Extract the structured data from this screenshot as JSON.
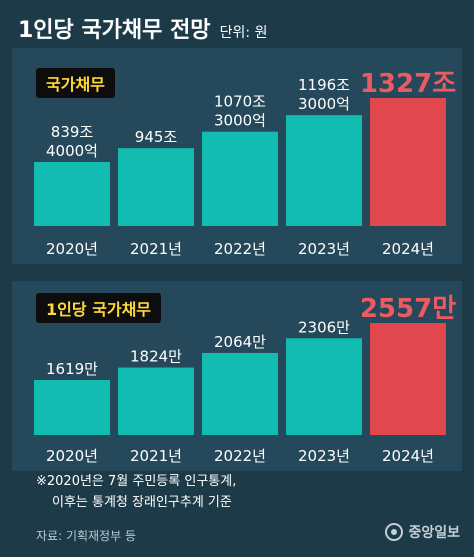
{
  "header": {
    "title": "1인당 국가채무 전망",
    "unit": "단위: 원"
  },
  "chart_data": [
    {
      "type": "bar",
      "badge": "국가채무",
      "categories": [
        "2020년",
        "2021년",
        "2022년",
        "2023년",
        "2024년"
      ],
      "values": [
        839.4,
        945,
        1070.3,
        1196.3,
        1327
      ],
      "value_unit": "조 원",
      "data_labels": [
        [
          "839조",
          "4000억"
        ],
        [
          "945조"
        ],
        [
          "1070조",
          "3000억"
        ],
        [
          "1196조",
          "3000억"
        ],
        [
          "1327조"
        ]
      ],
      "highlight_index": 4,
      "colors": {
        "bar": "#12bcb0",
        "highlight": "#e0474e",
        "highlight_label": "#ee5a62"
      }
    },
    {
      "type": "bar",
      "badge": "1인당 국가채무",
      "categories": [
        "2020년",
        "2021년",
        "2022년",
        "2023년",
        "2024년"
      ],
      "values": [
        1619,
        1824,
        2064,
        2306,
        2557
      ],
      "value_unit": "만 원",
      "data_labels": [
        [
          "1619만"
        ],
        [
          "1824만"
        ],
        [
          "2064만"
        ],
        [
          "2306만"
        ],
        [
          "2557만"
        ]
      ],
      "highlight_index": 4,
      "colors": {
        "bar": "#12bcb0",
        "highlight": "#e0474e",
        "highlight_label": "#ee5a62"
      }
    }
  ],
  "footnote": {
    "line1": "※2020년은 7월 주민등록 인구통계,",
    "line2": "이후는 통계청 장래인구추계 기준"
  },
  "source": "자료: 기획재정부 등",
  "logo": "중앙일보"
}
